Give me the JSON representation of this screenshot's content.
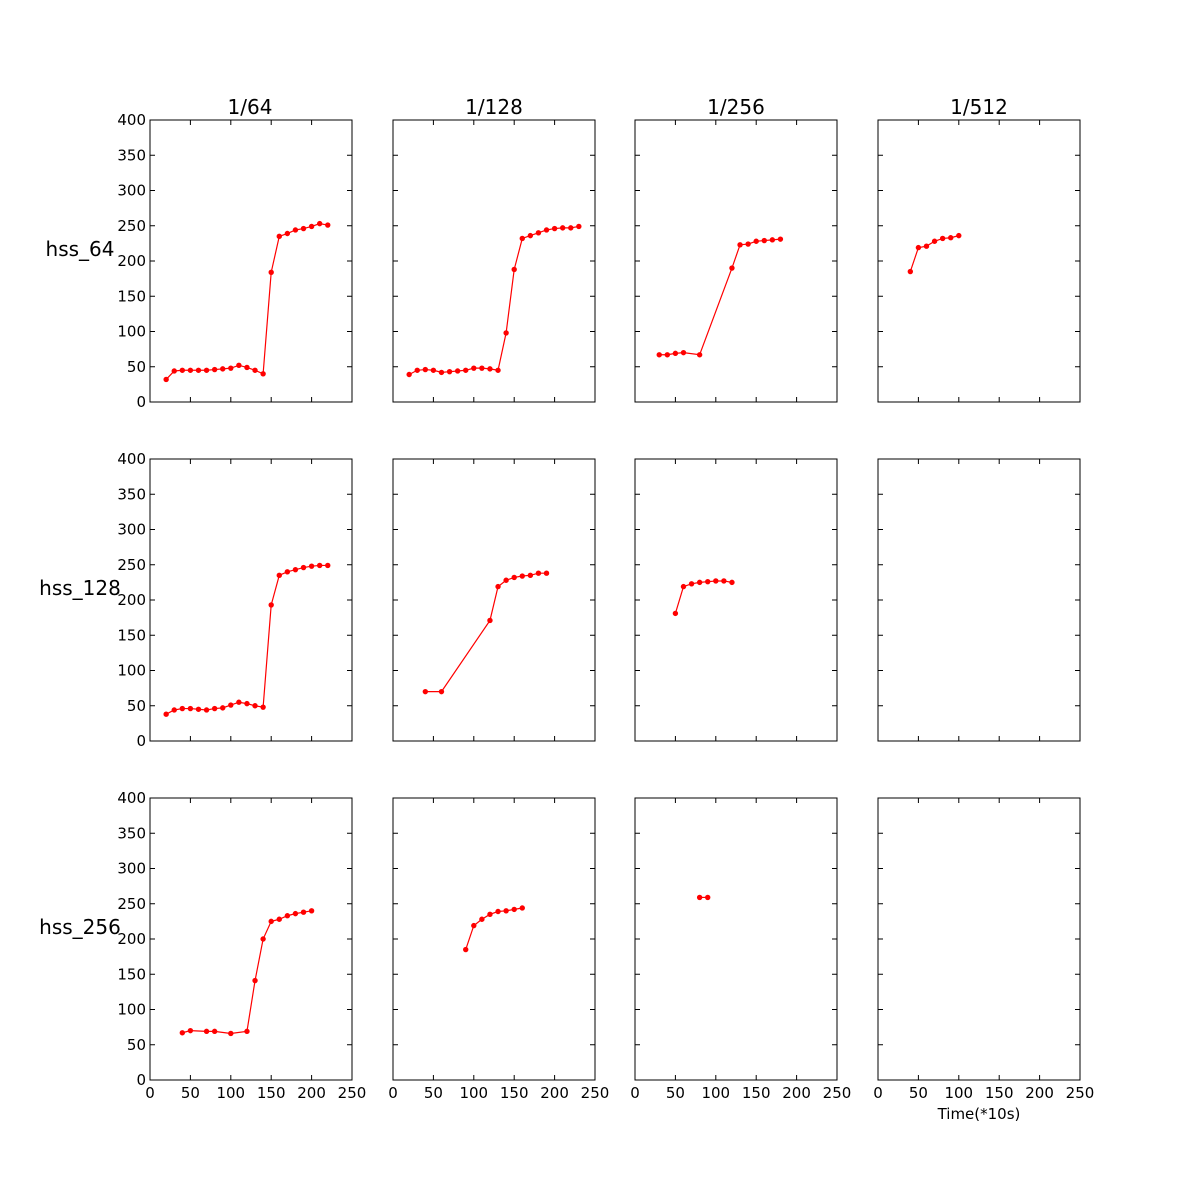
{
  "figure": {
    "col_titles": [
      "1/64",
      "1/128",
      "1/256",
      "1/512"
    ],
    "row_labels": [
      "hss_64",
      "hss_128",
      "hss_256"
    ],
    "xlabel": "Time(*10s)"
  },
  "style": {
    "series_color": "#ff0000"
  },
  "chart_data": [
    {
      "type": "line",
      "row": 0,
      "col": 0,
      "xlim": [
        0,
        250
      ],
      "ylim": [
        0,
        400
      ],
      "x": [
        20,
        30,
        40,
        50,
        60,
        70,
        80,
        90,
        100,
        110,
        120,
        130,
        140,
        150,
        160,
        170,
        180,
        190,
        200,
        210,
        220
      ],
      "y": [
        32,
        44,
        45,
        45,
        45,
        45,
        46,
        47,
        48,
        52,
        49,
        45,
        40,
        184,
        235,
        239,
        244,
        246,
        249,
        253,
        251
      ]
    },
    {
      "type": "line",
      "row": 0,
      "col": 1,
      "xlim": [
        0,
        250
      ],
      "ylim": [
        0,
        400
      ],
      "x": [
        20,
        30,
        40,
        50,
        60,
        70,
        80,
        90,
        100,
        110,
        120,
        130,
        140,
        150,
        160,
        170,
        180,
        190,
        200,
        210,
        220,
        230
      ],
      "y": [
        39,
        45,
        46,
        45,
        42,
        43,
        44,
        45,
        48,
        48,
        47,
        45,
        98,
        188,
        232,
        236,
        240,
        244,
        246,
        247,
        247,
        249
      ]
    },
    {
      "type": "line",
      "row": 0,
      "col": 2,
      "xlim": [
        0,
        250
      ],
      "ylim": [
        0,
        400
      ],
      "x": [
        30,
        40,
        50,
        60,
        80,
        120,
        130,
        140,
        150,
        160,
        170,
        180
      ],
      "y": [
        67,
        67,
        69,
        70,
        67,
        190,
        223,
        224,
        228,
        229,
        230,
        231
      ]
    },
    {
      "type": "line",
      "row": 0,
      "col": 3,
      "xlim": [
        0,
        250
      ],
      "ylim": [
        0,
        400
      ],
      "x": [
        40,
        50,
        60,
        70,
        80,
        90,
        100
      ],
      "y": [
        185,
        219,
        221,
        228,
        232,
        233,
        236
      ]
    },
    {
      "type": "line",
      "row": 1,
      "col": 0,
      "xlim": [
        0,
        250
      ],
      "ylim": [
        0,
        400
      ],
      "x": [
        20,
        30,
        40,
        50,
        60,
        70,
        80,
        90,
        100,
        110,
        120,
        130,
        140,
        150,
        160,
        170,
        180,
        190,
        200,
        210,
        220
      ],
      "y": [
        38,
        44,
        46,
        46,
        45,
        44,
        46,
        47,
        51,
        55,
        53,
        50,
        48,
        193,
        235,
        240,
        243,
        246,
        248,
        249,
        249
      ]
    },
    {
      "type": "line",
      "row": 1,
      "col": 1,
      "xlim": [
        0,
        250
      ],
      "ylim": [
        0,
        400
      ],
      "x": [
        40,
        60,
        120,
        130,
        140,
        150,
        160,
        170,
        180,
        190
      ],
      "y": [
        70,
        70,
        171,
        219,
        228,
        232,
        234,
        235,
        238,
        238
      ]
    },
    {
      "type": "line",
      "row": 1,
      "col": 2,
      "xlim": [
        0,
        250
      ],
      "ylim": [
        0,
        400
      ],
      "x": [
        50,
        60,
        70,
        80,
        90,
        100,
        110,
        120
      ],
      "y": [
        181,
        219,
        223,
        225,
        226,
        227,
        227,
        225
      ]
    },
    {
      "type": "line",
      "row": 1,
      "col": 3,
      "xlim": [
        0,
        250
      ],
      "ylim": [
        0,
        400
      ],
      "x": [],
      "y": []
    },
    {
      "type": "line",
      "row": 2,
      "col": 0,
      "xlim": [
        0,
        250
      ],
      "ylim": [
        0,
        400
      ],
      "x": [
        40,
        50,
        70,
        80,
        100,
        120,
        130,
        140,
        150,
        160,
        170,
        180,
        190,
        200
      ],
      "y": [
        67,
        70,
        69,
        69,
        66,
        69,
        141,
        200,
        225,
        228,
        233,
        236,
        238,
        240
      ]
    },
    {
      "type": "line",
      "row": 2,
      "col": 1,
      "xlim": [
        0,
        250
      ],
      "ylim": [
        0,
        400
      ],
      "x": [
        90,
        100,
        110,
        120,
        130,
        140,
        150,
        160
      ],
      "y": [
        185,
        219,
        228,
        235,
        239,
        240,
        242,
        244
      ]
    },
    {
      "type": "line",
      "row": 2,
      "col": 2,
      "xlim": [
        0,
        250
      ],
      "ylim": [
        0,
        400
      ],
      "x": [
        80,
        90
      ],
      "y": [
        259,
        259
      ]
    },
    {
      "type": "line",
      "row": 2,
      "col": 3,
      "xlim": [
        0,
        250
      ],
      "ylim": [
        0,
        400
      ],
      "x": [],
      "y": []
    }
  ],
  "axes": {
    "x_ticks": [
      0,
      50,
      100,
      150,
      200,
      250
    ],
    "y_ticks": [
      0,
      50,
      100,
      150,
      200,
      250,
      300,
      350,
      400
    ]
  }
}
